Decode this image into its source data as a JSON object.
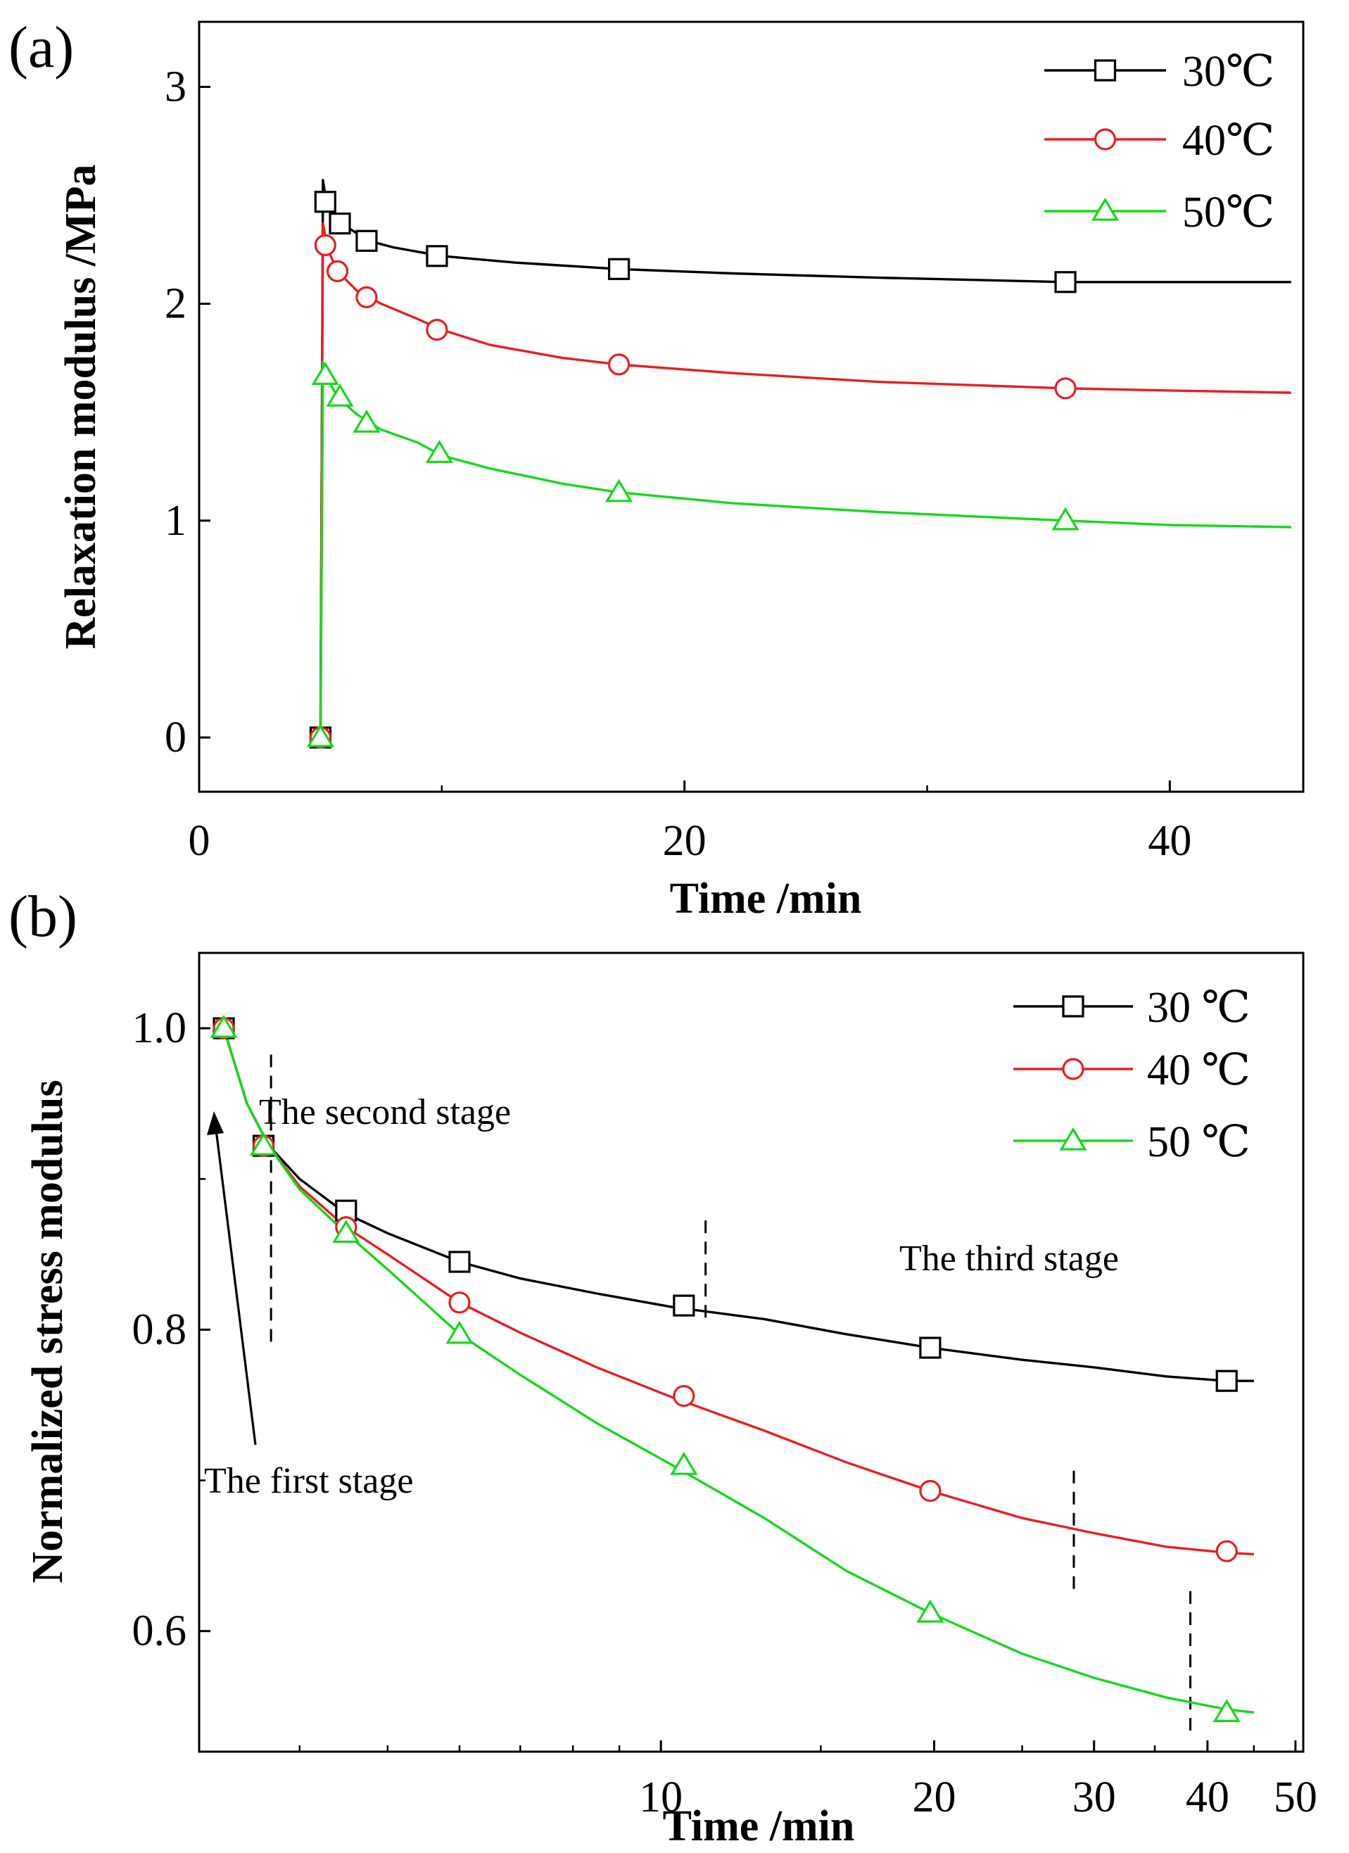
{
  "chart_data": [
    {
      "panel_label": "(a)",
      "type": "line",
      "xlabel": "Time /min",
      "ylabel": "Relaxation modulus /MPa",
      "xlim": [
        0,
        45.5
      ],
      "ylim": [
        -0.25,
        3.3
      ],
      "x_scale": "linear",
      "xticks": [
        0,
        20,
        40
      ],
      "xtick_labels": [
        "0",
        "20",
        "40"
      ],
      "yticks": [
        0,
        1,
        2,
        3
      ],
      "ytick_labels": [
        "0",
        "1",
        "2",
        "3"
      ],
      "legend_position": "top-right",
      "series": [
        {
          "name": "30℃",
          "color": "#000000",
          "marker": "square",
          "curve": [
            [
              5.0,
              0
            ],
            [
              5.05,
              1.2
            ],
            [
              5.1,
              2.57
            ],
            [
              5.2,
              2.5
            ],
            [
              5.5,
              2.43
            ],
            [
              6,
              2.36
            ],
            [
              7,
              2.29
            ],
            [
              8,
              2.26
            ],
            [
              10,
              2.22
            ],
            [
              13,
              2.19
            ],
            [
              17.3,
              2.16
            ],
            [
              22,
              2.14
            ],
            [
              28,
              2.12
            ],
            [
              35.7,
              2.1
            ],
            [
              40,
              2.1
            ],
            [
              45,
              2.1
            ]
          ],
          "markers": [
            [
              5.0,
              0
            ],
            [
              5.2,
              2.47
            ],
            [
              5.8,
              2.37
            ],
            [
              6.9,
              2.29
            ],
            [
              9.8,
              2.22
            ],
            [
              17.3,
              2.16
            ],
            [
              35.7,
              2.1
            ]
          ]
        },
        {
          "name": "40℃",
          "color": "#e8201e",
          "marker": "circle",
          "curve": [
            [
              5.0,
              0
            ],
            [
              5.05,
              1.2
            ],
            [
              5.1,
              2.37
            ],
            [
              5.3,
              2.25
            ],
            [
              5.7,
              2.15
            ],
            [
              6.5,
              2.06
            ],
            [
              7.5,
              2.0
            ],
            [
              9,
              1.93
            ],
            [
              10,
              1.88
            ],
            [
              12,
              1.81
            ],
            [
              15,
              1.75
            ],
            [
              17.3,
              1.72
            ],
            [
              22,
              1.68
            ],
            [
              28,
              1.64
            ],
            [
              35.7,
              1.61
            ],
            [
              40,
              1.6
            ],
            [
              45,
              1.59
            ]
          ],
          "markers": [
            [
              5.0,
              0
            ],
            [
              5.2,
              2.27
            ],
            [
              5.7,
              2.15
            ],
            [
              6.9,
              2.03
            ],
            [
              9.8,
              1.88
            ],
            [
              17.3,
              1.72
            ],
            [
              35.7,
              1.61
            ]
          ]
        },
        {
          "name": "50℃",
          "color": "#18d81c",
          "marker": "triangle",
          "curve": [
            [
              5.0,
              0
            ],
            [
              5.05,
              0.8
            ],
            [
              5.1,
              1.73
            ],
            [
              5.3,
              1.65
            ],
            [
              5.7,
              1.57
            ],
            [
              6.5,
              1.49
            ],
            [
              7.5,
              1.42
            ],
            [
              9,
              1.36
            ],
            [
              10,
              1.3
            ],
            [
              12,
              1.24
            ],
            [
              15,
              1.17
            ],
            [
              17.3,
              1.13
            ],
            [
              22,
              1.08
            ],
            [
              28,
              1.04
            ],
            [
              35.7,
              1.0
            ],
            [
              40,
              0.98
            ],
            [
              45,
              0.97
            ]
          ],
          "markers": [
            [
              5.0,
              0
            ],
            [
              5.2,
              1.67
            ],
            [
              5.8,
              1.57
            ],
            [
              6.9,
              1.45
            ],
            [
              9.9,
              1.31
            ],
            [
              17.3,
              1.13
            ],
            [
              35.7,
              1.0
            ]
          ]
        }
      ]
    },
    {
      "panel_label": "(b)",
      "type": "line",
      "xlabel": "Time /min",
      "ylabel": "Normalized stress modulus",
      "xlim": [
        3.1,
        51
      ],
      "ylim": [
        0.52,
        1.05
      ],
      "x_scale": "log",
      "xticks": [
        10,
        20,
        30,
        40,
        50
      ],
      "xtick_labels": [
        "10",
        "20",
        "30",
        "40",
        "50"
      ],
      "yticks": [
        0.6,
        0.8,
        1.0
      ],
      "ytick_labels": [
        "0.6",
        "0.8",
        "1.0"
      ],
      "legend_position": "top-right",
      "annotations": [
        {
          "text": "The first stage"
        },
        {
          "text": "The second stage"
        },
        {
          "text": "The third stage"
        }
      ],
      "series": [
        {
          "name": "30 ℃",
          "color": "#000000",
          "marker": "square",
          "curve": [
            [
              3.3,
              1.0
            ],
            [
              3.5,
              0.95
            ],
            [
              3.7,
              0.922
            ],
            [
              4.0,
              0.9
            ],
            [
              4.5,
              0.877
            ],
            [
              5.0,
              0.864
            ],
            [
              6.0,
              0.845
            ],
            [
              7.0,
              0.834
            ],
            [
              8.5,
              0.824
            ],
            [
              10.3,
              0.815
            ],
            [
              13,
              0.807
            ],
            [
              16,
              0.797
            ],
            [
              19.8,
              0.788
            ],
            [
              25,
              0.78
            ],
            [
              30,
              0.775
            ],
            [
              36,
              0.769
            ],
            [
              42,
              0.766
            ],
            [
              45,
              0.766
            ]
          ],
          "markers": [
            [
              3.3,
              1.0
            ],
            [
              3.65,
              0.922
            ],
            [
              4.5,
              0.879
            ],
            [
              6.0,
              0.845
            ],
            [
              10.6,
              0.816
            ],
            [
              19.8,
              0.788
            ],
            [
              42,
              0.766
            ]
          ]
        },
        {
          "name": "40 ℃",
          "color": "#e8201e",
          "marker": "circle",
          "curve": [
            [
              3.3,
              1.0
            ],
            [
              3.5,
              0.95
            ],
            [
              3.7,
              0.922
            ],
            [
              4.0,
              0.895
            ],
            [
              4.5,
              0.868
            ],
            [
              5.0,
              0.85
            ],
            [
              6.0,
              0.818
            ],
            [
              7.0,
              0.798
            ],
            [
              8.5,
              0.775
            ],
            [
              10.3,
              0.755
            ],
            [
              13,
              0.733
            ],
            [
              16,
              0.712
            ],
            [
              19.8,
              0.693
            ],
            [
              25,
              0.675
            ],
            [
              30,
              0.665
            ],
            [
              36,
              0.656
            ],
            [
              42,
              0.652
            ],
            [
              45,
              0.651
            ]
          ],
          "markers": [
            [
              3.3,
              1.0
            ],
            [
              3.65,
              0.922
            ],
            [
              4.5,
              0.868
            ],
            [
              6.0,
              0.818
            ],
            [
              10.6,
              0.756
            ],
            [
              19.8,
              0.693
            ],
            [
              42,
              0.653
            ]
          ]
        },
        {
          "name": "50 ℃",
          "color": "#18d81c",
          "marker": "triangle",
          "curve": [
            [
              3.3,
              1.0
            ],
            [
              3.5,
              0.95
            ],
            [
              3.7,
              0.922
            ],
            [
              4.0,
              0.893
            ],
            [
              4.5,
              0.864
            ],
            [
              5.0,
              0.84
            ],
            [
              6.0,
              0.797
            ],
            [
              7.0,
              0.77
            ],
            [
              8.5,
              0.738
            ],
            [
              10.3,
              0.71
            ],
            [
              13,
              0.675
            ],
            [
              16,
              0.64
            ],
            [
              19.8,
              0.612
            ],
            [
              25,
              0.585
            ],
            [
              30,
              0.569
            ],
            [
              36,
              0.556
            ],
            [
              42,
              0.548
            ],
            [
              45,
              0.546
            ]
          ],
          "markers": [
            [
              3.3,
              1.0
            ],
            [
              3.65,
              0.922
            ],
            [
              4.5,
              0.864
            ],
            [
              6.0,
              0.797
            ],
            [
              10.6,
              0.71
            ],
            [
              19.8,
              0.612
            ],
            [
              42,
              0.546
            ]
          ]
        }
      ],
      "stage_dividers": [
        {
          "x": 3.72,
          "y_from": 0.792,
          "y_to": 0.985
        },
        {
          "x": 11.2,
          "y_from": 0.808,
          "y_to": 0.875
        },
        {
          "x": 28.5,
          "y_from": 0.628,
          "y_to": 0.712
        },
        {
          "x": 38.3,
          "y_from": 0.534,
          "y_to": 0.628
        }
      ]
    }
  ]
}
